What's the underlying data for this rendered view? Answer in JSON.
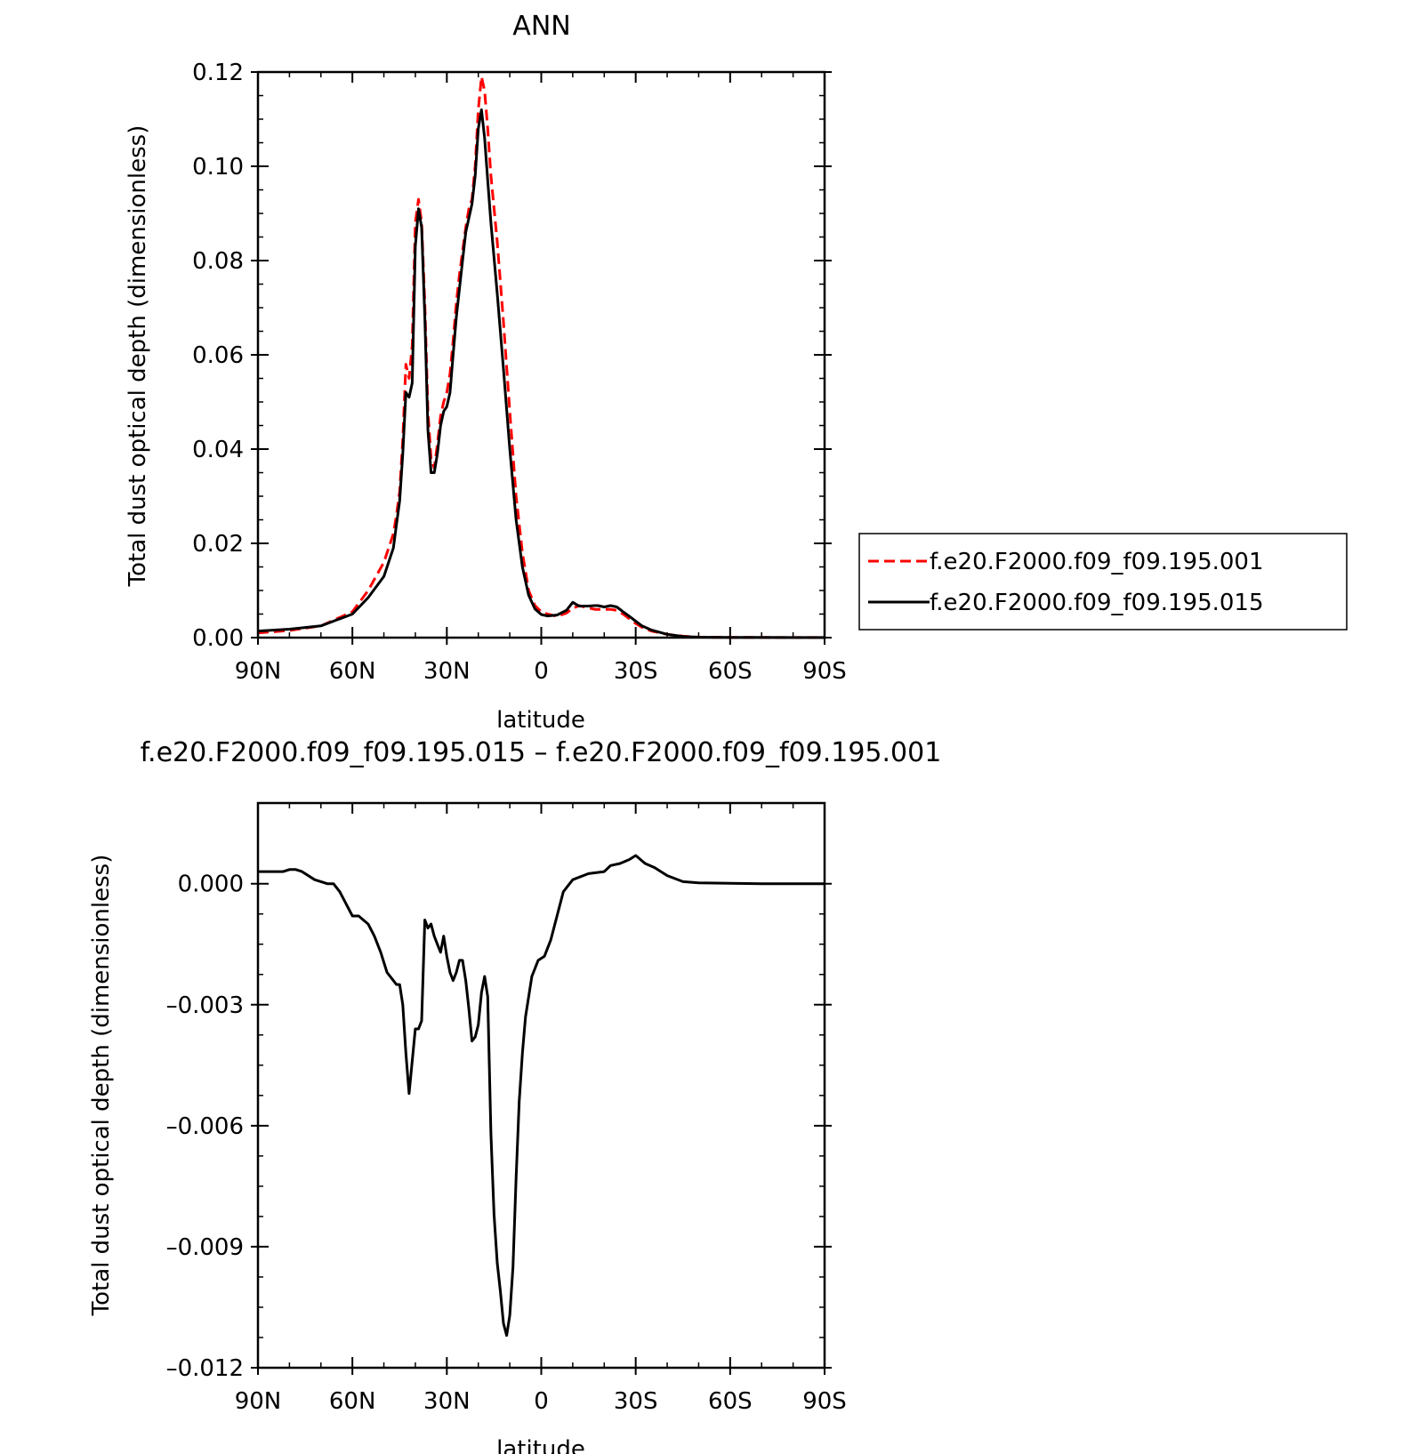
{
  "chart_data": [
    {
      "type": "line",
      "title": "ANN",
      "xlabel": "latitude",
      "ylabel": "Total dust optical depth (dimensionless)",
      "xlim": [
        90,
        -90
      ],
      "ylim": [
        0.0,
        0.12
      ],
      "grid": false,
      "legend_position": "right",
      "x_ticks": [
        90,
        60,
        30,
        0,
        -30,
        -60,
        -90
      ],
      "x_tick_labels": [
        "90N",
        "60N",
        "30N",
        "0",
        "30S",
        "60S",
        "90S"
      ],
      "y_ticks": [
        0.0,
        0.02,
        0.04,
        0.06,
        0.08,
        0.1,
        0.12
      ],
      "y_tick_labels": [
        "0.00",
        "0.02",
        "0.04",
        "0.06",
        "0.08",
        "0.10",
        "0.12"
      ],
      "x": [
        90,
        80,
        70,
        60,
        55,
        50,
        47,
        46,
        45,
        44,
        43,
        42,
        41,
        40,
        39,
        38,
        37,
        36,
        35,
        34,
        33,
        32,
        31,
        30,
        29,
        28,
        27,
        26,
        25,
        24,
        23,
        22,
        21,
        20,
        19,
        18,
        17,
        16,
        14,
        12,
        10,
        8,
        6,
        4,
        2,
        0,
        -2,
        -5,
        -8,
        -10,
        -12,
        -15,
        -17,
        -18,
        -20,
        -22,
        -24,
        -26,
        -28,
        -30,
        -32,
        -35,
        -40,
        -45,
        -50,
        -60,
        -70,
        -80,
        -90
      ],
      "series": [
        {
          "name": "f.e20.F2000.f09_f09.195.001",
          "color": "#ff0000",
          "dash": "dashed",
          "values": [
            0.001,
            0.0015,
            0.0025,
            0.0055,
            0.01,
            0.016,
            0.022,
            0.026,
            0.031,
            0.042,
            0.058,
            0.055,
            0.062,
            0.088,
            0.093,
            0.088,
            0.071,
            0.048,
            0.038,
            0.036,
            0.041,
            0.047,
            0.05,
            0.052,
            0.056,
            0.063,
            0.071,
            0.077,
            0.082,
            0.087,
            0.091,
            0.093,
            0.1,
            0.112,
            0.119,
            0.116,
            0.108,
            0.098,
            0.084,
            0.067,
            0.048,
            0.03,
            0.018,
            0.01,
            0.0068,
            0.0055,
            0.005,
            0.0045,
            0.0052,
            0.0062,
            0.0068,
            0.0063,
            0.006,
            0.006,
            0.006,
            0.006,
            0.0058,
            0.005,
            0.004,
            0.003,
            0.0022,
            0.0014,
            0.0007,
            0.0003,
            0.0001,
            5e-05,
            3e-05,
            2e-05,
            1e-05
          ]
        },
        {
          "name": "f.e20.F2000.f09_f09.195.015",
          "color": "#000000",
          "dash": "solid",
          "values": [
            0.0014,
            0.0018,
            0.0025,
            0.005,
            0.0085,
            0.013,
            0.019,
            0.024,
            0.029,
            0.039,
            0.052,
            0.051,
            0.054,
            0.083,
            0.091,
            0.087,
            0.068,
            0.044,
            0.035,
            0.035,
            0.039,
            0.045,
            0.048,
            0.049,
            0.052,
            0.06,
            0.068,
            0.074,
            0.08,
            0.086,
            0.089,
            0.092,
            0.098,
            0.108,
            0.112,
            0.106,
            0.097,
            0.088,
            0.073,
            0.057,
            0.04,
            0.025,
            0.015,
            0.009,
            0.0061,
            0.0049,
            0.0046,
            0.0048,
            0.0058,
            0.0075,
            0.0067,
            0.0067,
            0.0068,
            0.0068,
            0.0065,
            0.0068,
            0.0065,
            0.0055,
            0.0045,
            0.0035,
            0.0025,
            0.0016,
            0.0007,
            0.00025,
            0.0001,
            6e-05,
            3e-05,
            2e-05,
            1e-05
          ]
        }
      ]
    },
    {
      "type": "line",
      "title": "f.e20.F2000.f09_f09.195.015 – f.e20.F2000.f09_f09.195.001",
      "xlabel": "latitude",
      "ylabel": "Total dust optical depth (dimensionless)",
      "xlim": [
        90,
        -90
      ],
      "ylim": [
        -0.012,
        0.002
      ],
      "grid": false,
      "x_ticks": [
        90,
        60,
        30,
        0,
        -30,
        -60,
        -90
      ],
      "x_tick_labels": [
        "90N",
        "60N",
        "30N",
        "0",
        "30S",
        "60S",
        "90S"
      ],
      "y_ticks": [
        0.0,
        -0.003,
        -0.006,
        -0.009,
        -0.012
      ],
      "y_tick_labels": [
        "0.000",
        "–0.003",
        "–0.006",
        "–0.009",
        "–0.012"
      ],
      "x": [
        90,
        85,
        82,
        80,
        78,
        76,
        72,
        68,
        66,
        64,
        62,
        60,
        58,
        55,
        53,
        51,
        49,
        47,
        46,
        45,
        44,
        43,
        42,
        41,
        40,
        39,
        38,
        37,
        36,
        35,
        34,
        33,
        32,
        31,
        30,
        29,
        28,
        27,
        26,
        25,
        24,
        23,
        22,
        21,
        20,
        19,
        18,
        17,
        16,
        15,
        14,
        13,
        12,
        11,
        10,
        9,
        8,
        7,
        6,
        5,
        3,
        1,
        -1,
        -3,
        -5,
        -7,
        -10,
        -15,
        -20,
        -22,
        -25,
        -28,
        -30,
        -33,
        -36,
        -40,
        -45,
        -50,
        -60,
        -70,
        -80,
        -90
      ],
      "series": [
        {
          "name": "",
          "color": "#000000",
          "dash": "solid",
          "values": [
            0.0003,
            0.0003,
            0.0003,
            0.00035,
            0.00035,
            0.0003,
            0.0001,
            0.0,
            0.0,
            -0.0002,
            -0.0005,
            -0.0008,
            -0.0008,
            -0.001,
            -0.0013,
            -0.0017,
            -0.0022,
            -0.0024,
            -0.0025,
            -0.0025,
            -0.003,
            -0.0042,
            -0.0052,
            -0.0044,
            -0.0036,
            -0.0036,
            -0.0034,
            -0.0009,
            -0.0011,
            -0.001,
            -0.0013,
            -0.0015,
            -0.0017,
            -0.0013,
            -0.0018,
            -0.0022,
            -0.0024,
            -0.0022,
            -0.0019,
            -0.0019,
            -0.0024,
            -0.0031,
            -0.0039,
            -0.0038,
            -0.0035,
            -0.0027,
            -0.0023,
            -0.0028,
            -0.0062,
            -0.0082,
            -0.0094,
            -0.0101,
            -0.0109,
            -0.0112,
            -0.0107,
            -0.0095,
            -0.0073,
            -0.0054,
            -0.0042,
            -0.0033,
            -0.0023,
            -0.0019,
            -0.0018,
            -0.0014,
            -0.0008,
            -0.0002,
            0.0001,
            0.00025,
            0.0003,
            0.00045,
            0.0005,
            0.0006,
            0.0007,
            0.0005,
            0.0004,
            0.0002,
            5e-05,
            2e-05,
            1e-05,
            0.0,
            0.0,
            0.0
          ]
        }
      ]
    }
  ]
}
